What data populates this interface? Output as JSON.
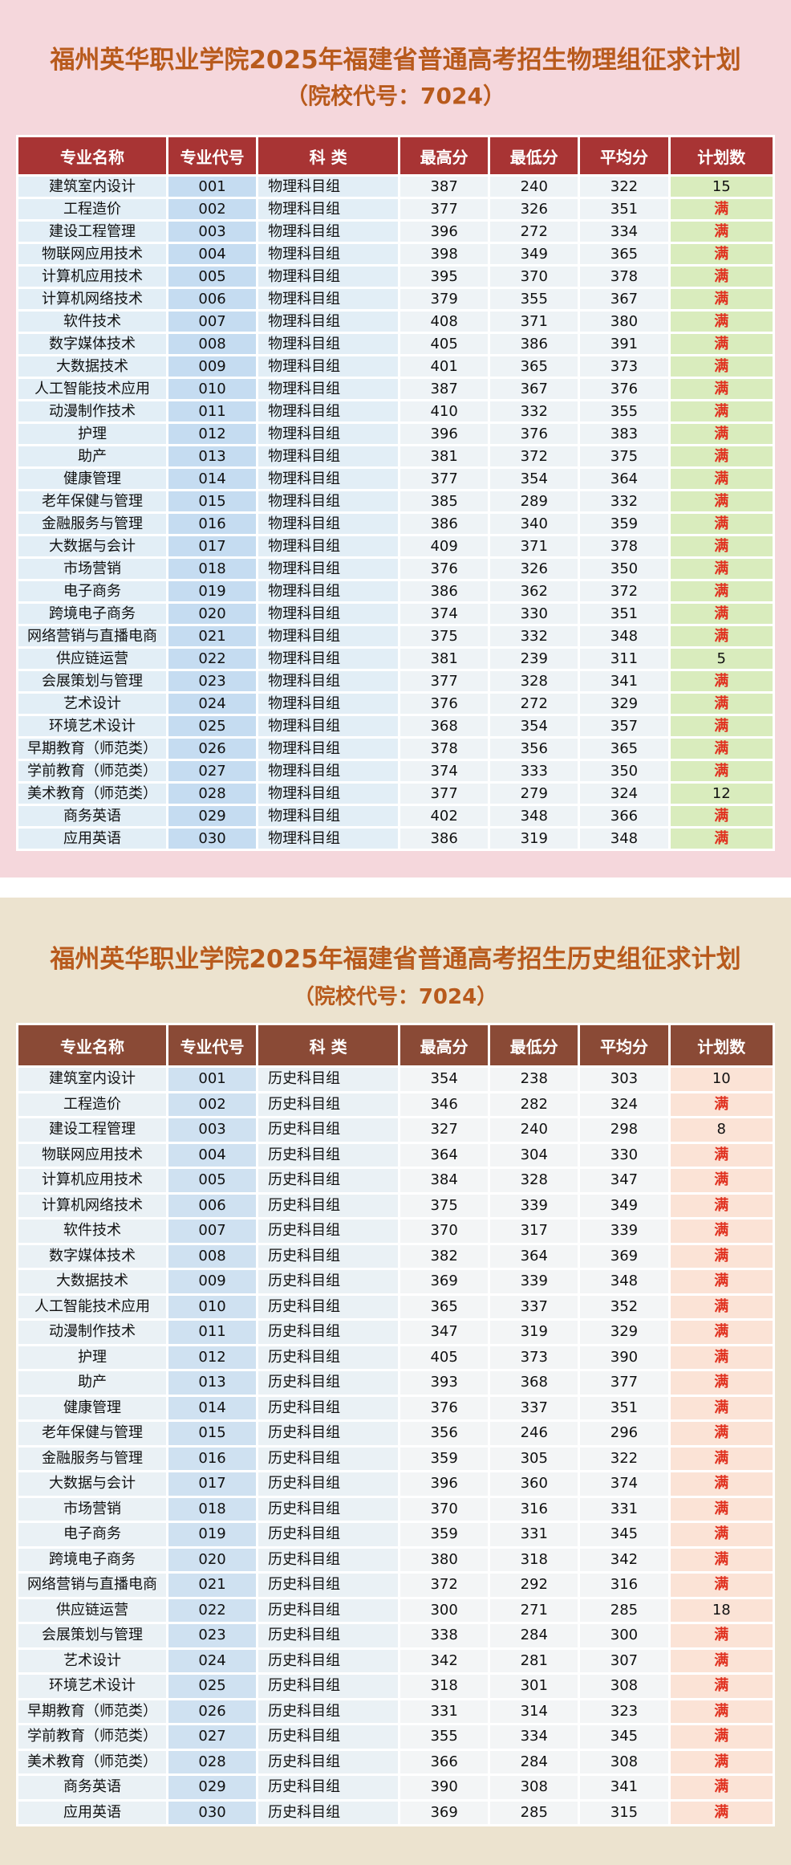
{
  "physics": {
    "title": "福州英华职业学院2025年福建省普通高考招生物理组征求计划",
    "subtitle": "（院校代号：7024）",
    "headers": [
      "专业名称",
      "专业代号",
      "科 类",
      "最高分",
      "最低分",
      "平均分",
      "计划数"
    ],
    "rows": [
      [
        "建筑室内设计",
        "001",
        "物理科目组",
        "387",
        "240",
        "322",
        "15"
      ],
      [
        "工程造价",
        "002",
        "物理科目组",
        "377",
        "326",
        "351",
        "满"
      ],
      [
        "建设工程管理",
        "003",
        "物理科目组",
        "396",
        "272",
        "334",
        "满"
      ],
      [
        "物联网应用技术",
        "004",
        "物理科目组",
        "398",
        "349",
        "365",
        "满"
      ],
      [
        "计算机应用技术",
        "005",
        "物理科目组",
        "395",
        "370",
        "378",
        "满"
      ],
      [
        "计算机网络技术",
        "006",
        "物理科目组",
        "379",
        "355",
        "367",
        "满"
      ],
      [
        "软件技术",
        "007",
        "物理科目组",
        "408",
        "371",
        "380",
        "满"
      ],
      [
        "数字媒体技术",
        "008",
        "物理科目组",
        "405",
        "386",
        "391",
        "满"
      ],
      [
        "大数据技术",
        "009",
        "物理科目组",
        "401",
        "365",
        "373",
        "满"
      ],
      [
        "人工智能技术应用",
        "010",
        "物理科目组",
        "387",
        "367",
        "376",
        "满"
      ],
      [
        "动漫制作技术",
        "011",
        "物理科目组",
        "410",
        "332",
        "355",
        "满"
      ],
      [
        "护理",
        "012",
        "物理科目组",
        "396",
        "376",
        "383",
        "满"
      ],
      [
        "助产",
        "013",
        "物理科目组",
        "381",
        "372",
        "375",
        "满"
      ],
      [
        "健康管理",
        "014",
        "物理科目组",
        "377",
        "354",
        "364",
        "满"
      ],
      [
        "老年保健与管理",
        "015",
        "物理科目组",
        "385",
        "289",
        "332",
        "满"
      ],
      [
        "金融服务与管理",
        "016",
        "物理科目组",
        "386",
        "340",
        "359",
        "满"
      ],
      [
        "大数据与会计",
        "017",
        "物理科目组",
        "409",
        "371",
        "378",
        "满"
      ],
      [
        "市场营销",
        "018",
        "物理科目组",
        "376",
        "326",
        "350",
        "满"
      ],
      [
        "电子商务",
        "019",
        "物理科目组",
        "386",
        "362",
        "372",
        "满"
      ],
      [
        "跨境电子商务",
        "020",
        "物理科目组",
        "374",
        "330",
        "351",
        "满"
      ],
      [
        "网络营销与直播电商",
        "021",
        "物理科目组",
        "375",
        "332",
        "348",
        "满"
      ],
      [
        "供应链运营",
        "022",
        "物理科目组",
        "381",
        "239",
        "311",
        "5"
      ],
      [
        "会展策划与管理",
        "023",
        "物理科目组",
        "377",
        "328",
        "341",
        "满"
      ],
      [
        "艺术设计",
        "024",
        "物理科目组",
        "376",
        "272",
        "329",
        "满"
      ],
      [
        "环境艺术设计",
        "025",
        "物理科目组",
        "368",
        "354",
        "357",
        "满"
      ],
      [
        "早期教育（师范类）",
        "026",
        "物理科目组",
        "378",
        "356",
        "365",
        "满"
      ],
      [
        "学前教育（师范类）",
        "027",
        "物理科目组",
        "374",
        "333",
        "350",
        "满"
      ],
      [
        "美术教育（师范类）",
        "028",
        "物理科目组",
        "377",
        "279",
        "324",
        "12"
      ],
      [
        "商务英语",
        "029",
        "物理科目组",
        "402",
        "348",
        "366",
        "满"
      ],
      [
        "应用英语",
        "030",
        "物理科目组",
        "386",
        "319",
        "348",
        "满"
      ]
    ]
  },
  "history": {
    "title": "福州英华职业学院2025年福建省普通高考招生历史组征求计划",
    "subtitle": "（院校代号：7024）",
    "headers": [
      "专业名称",
      "专业代号",
      "科 类",
      "最高分",
      "最低分",
      "平均分",
      "计划数"
    ],
    "rows": [
      [
        "建筑室内设计",
        "001",
        "历史科目组",
        "354",
        "238",
        "303",
        "10"
      ],
      [
        "工程造价",
        "002",
        "历史科目组",
        "346",
        "282",
        "324",
        "满"
      ],
      [
        "建设工程管理",
        "003",
        "历史科目组",
        "327",
        "240",
        "298",
        "8"
      ],
      [
        "物联网应用技术",
        "004",
        "历史科目组",
        "364",
        "304",
        "330",
        "满"
      ],
      [
        "计算机应用技术",
        "005",
        "历史科目组",
        "384",
        "328",
        "347",
        "满"
      ],
      [
        "计算机网络技术",
        "006",
        "历史科目组",
        "375",
        "339",
        "349",
        "满"
      ],
      [
        "软件技术",
        "007",
        "历史科目组",
        "370",
        "317",
        "339",
        "满"
      ],
      [
        "数字媒体技术",
        "008",
        "历史科目组",
        "382",
        "364",
        "369",
        "满"
      ],
      [
        "大数据技术",
        "009",
        "历史科目组",
        "369",
        "339",
        "348",
        "满"
      ],
      [
        "人工智能技术应用",
        "010",
        "历史科目组",
        "365",
        "337",
        "352",
        "满"
      ],
      [
        "动漫制作技术",
        "011",
        "历史科目组",
        "347",
        "319",
        "329",
        "满"
      ],
      [
        "护理",
        "012",
        "历史科目组",
        "405",
        "373",
        "390",
        "满"
      ],
      [
        "助产",
        "013",
        "历史科目组",
        "393",
        "368",
        "377",
        "满"
      ],
      [
        "健康管理",
        "014",
        "历史科目组",
        "376",
        "337",
        "351",
        "满"
      ],
      [
        "老年保健与管理",
        "015",
        "历史科目组",
        "356",
        "246",
        "296",
        "满"
      ],
      [
        "金融服务与管理",
        "016",
        "历史科目组",
        "359",
        "305",
        "322",
        "满"
      ],
      [
        "大数据与会计",
        "017",
        "历史科目组",
        "396",
        "360",
        "374",
        "满"
      ],
      [
        "市场营销",
        "018",
        "历史科目组",
        "370",
        "316",
        "331",
        "满"
      ],
      [
        "电子商务",
        "019",
        "历史科目组",
        "359",
        "331",
        "345",
        "满"
      ],
      [
        "跨境电子商务",
        "020",
        "历史科目组",
        "380",
        "318",
        "342",
        "满"
      ],
      [
        "网络营销与直播电商",
        "021",
        "历史科目组",
        "372",
        "292",
        "316",
        "满"
      ],
      [
        "供应链运营",
        "022",
        "历史科目组",
        "300",
        "271",
        "285",
        "18"
      ],
      [
        "会展策划与管理",
        "023",
        "历史科目组",
        "338",
        "284",
        "300",
        "满"
      ],
      [
        "艺术设计",
        "024",
        "历史科目组",
        "342",
        "281",
        "307",
        "满"
      ],
      [
        "环境艺术设计",
        "025",
        "历史科目组",
        "318",
        "301",
        "308",
        "满"
      ],
      [
        "早期教育（师范类）",
        "026",
        "历史科目组",
        "331",
        "314",
        "323",
        "满"
      ],
      [
        "学前教育（师范类）",
        "027",
        "历史科目组",
        "355",
        "334",
        "345",
        "满"
      ],
      [
        "美术教育（师范类）",
        "028",
        "历史科目组",
        "366",
        "284",
        "308",
        "满"
      ],
      [
        "商务英语",
        "029",
        "历史科目组",
        "390",
        "308",
        "341",
        "满"
      ],
      [
        "应用英语",
        "030",
        "历史科目组",
        "369",
        "285",
        "315",
        "满"
      ]
    ]
  }
}
